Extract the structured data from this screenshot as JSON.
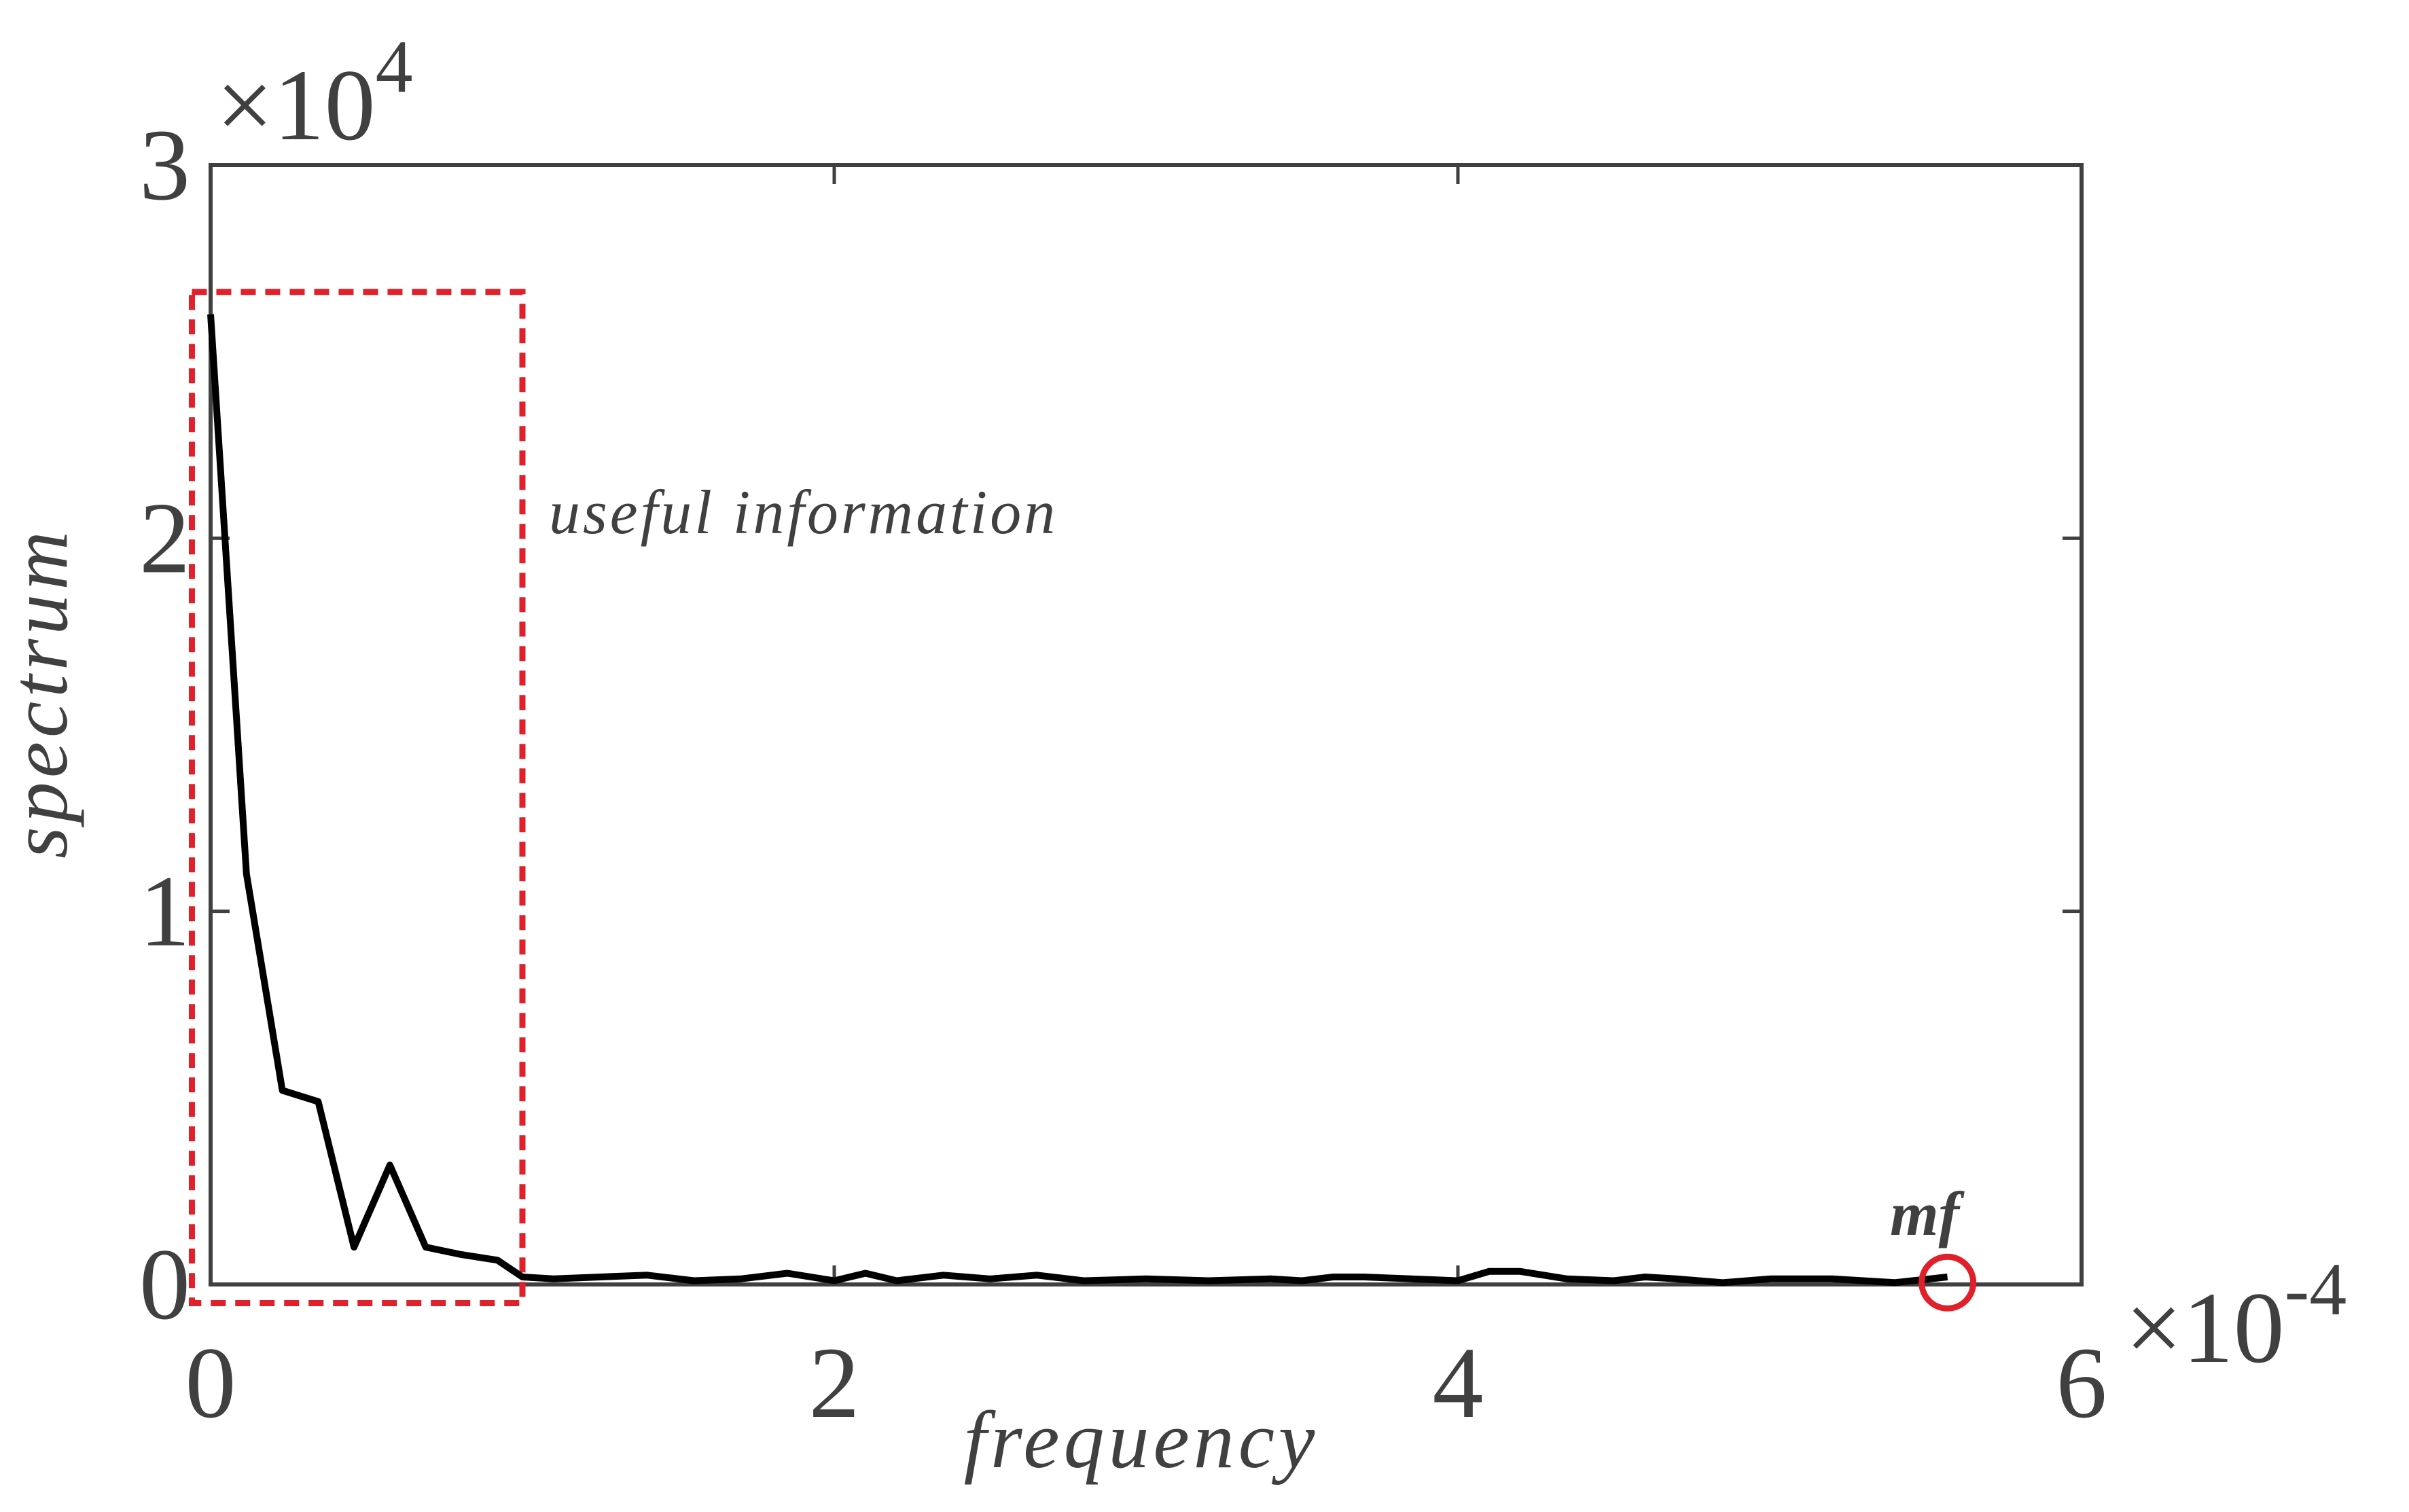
{
  "chart_data": {
    "type": "line",
    "xlabel": "frequency",
    "ylabel": "spectrum",
    "x_scale_label": "×10",
    "x_scale_exponent": "-4",
    "y_scale_label": "×10",
    "y_scale_exponent": "4",
    "xlim": [
      0,
      6
    ],
    "ylim": [
      0,
      3
    ],
    "x_ticks": [
      0,
      2,
      4,
      6
    ],
    "x_tick_labels": [
      "0",
      "2",
      "4",
      "6"
    ],
    "y_ticks": [
      0,
      1,
      2,
      3
    ],
    "y_tick_labels": [
      "0",
      "1",
      "2",
      "3"
    ],
    "units_note": "x values in units of 1e-4, y values in units of 1e4",
    "series": [
      {
        "name": "spectrum",
        "color": "#000000",
        "x": [
          0,
          0.115,
          0.23,
          0.345,
          0.46,
          0.575,
          0.69,
          0.805,
          0.92,
          1.0,
          1.1,
          1.25,
          1.4,
          1.55,
          1.7,
          1.85,
          2.0,
          2.1,
          2.2,
          2.35,
          2.5,
          2.65,
          2.8,
          3.0,
          3.2,
          3.4,
          3.5,
          3.6,
          3.7,
          3.85,
          4.0,
          4.1,
          4.2,
          4.35,
          4.5,
          4.6,
          4.7,
          4.85,
          5.0,
          5.2,
          5.4,
          5.57
        ],
        "y": [
          2.6,
          1.1,
          0.52,
          0.49,
          0.1,
          0.32,
          0.1,
          0.08,
          0.065,
          0.02,
          0.015,
          0.02,
          0.025,
          0.01,
          0.015,
          0.03,
          0.01,
          0.03,
          0.01,
          0.025,
          0.015,
          0.025,
          0.01,
          0.015,
          0.01,
          0.015,
          0.01,
          0.02,
          0.02,
          0.015,
          0.01,
          0.035,
          0.035,
          0.015,
          0.01,
          0.02,
          0.015,
          0.005,
          0.015,
          0.015,
          0.005,
          0.02
        ]
      }
    ],
    "annotations": [
      {
        "type": "dashed-box",
        "text": "useful information",
        "color": "#e0202a",
        "x_range": [
          -0.06,
          1.0
        ],
        "y_range": [
          -0.05,
          2.66
        ]
      },
      {
        "type": "circle-marker",
        "text": "mf",
        "color": "#e0202a",
        "x": 5.57,
        "y": 0.005
      }
    ]
  }
}
